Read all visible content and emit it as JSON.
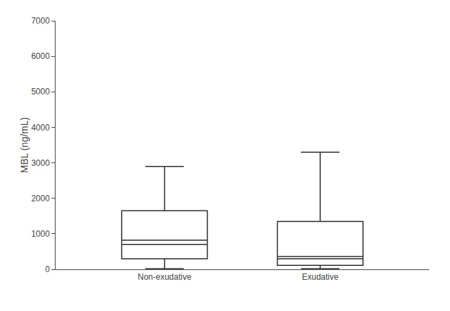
{
  "chart_data": {
    "type": "box",
    "categories": [
      "Non-exudative",
      "Exudative"
    ],
    "boxes": [
      {
        "whisker_low": 20,
        "q1": 300,
        "median": 820,
        "median2": 700,
        "q3": 1650,
        "whisker_high": 2900
      },
      {
        "whisker_low": 20,
        "q1": 110,
        "median": 360,
        "median2": 300,
        "q3": 1350,
        "whisker_high": 3300
      }
    ],
    "ylabel": "MBL (ng/mL)",
    "ylim": [
      0,
      7000
    ],
    "yticks": [
      0,
      1000,
      2000,
      3000,
      4000,
      5000,
      6000,
      7000
    ],
    "color": "#2a2a2a",
    "grid": false
  }
}
